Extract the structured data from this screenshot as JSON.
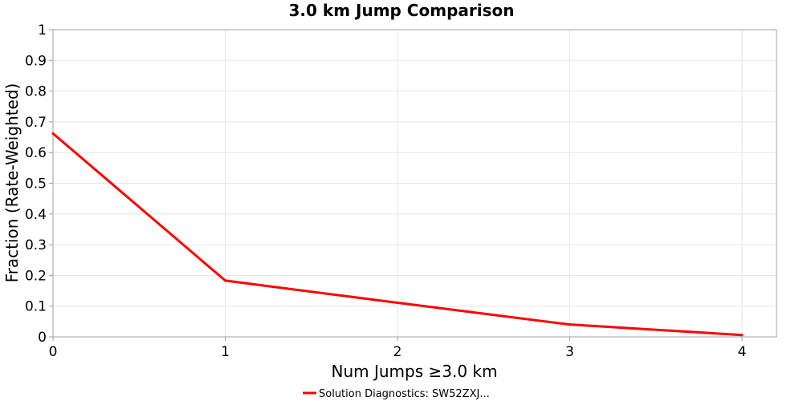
{
  "chart_data": {
    "type": "line",
    "title": "3.0 km Jump Comparison",
    "xlabel": "Num Jumps ≥3.0 km",
    "ylabel": "Fraction (Rate-Weighted)",
    "xlim": [
      0,
      4.2
    ],
    "ylim": [
      0,
      1
    ],
    "x_ticks": [
      "0",
      "1",
      "2",
      "3",
      "4"
    ],
    "y_ticks": [
      "0",
      "0.1",
      "0.2",
      "0.3",
      "0.4",
      "0.5",
      "0.6",
      "0.7",
      "0.8",
      "0.9",
      "1"
    ],
    "grid": true,
    "legend_position": "bottom-center",
    "series": [
      {
        "name": "Solution Diagnostics: SW52ZXJ...",
        "color": "#ff0000",
        "x": [
          0,
          1,
          2,
          3,
          4
        ],
        "values": [
          0.662,
          0.183,
          0.111,
          0.04,
          0.006
        ]
      }
    ]
  }
}
